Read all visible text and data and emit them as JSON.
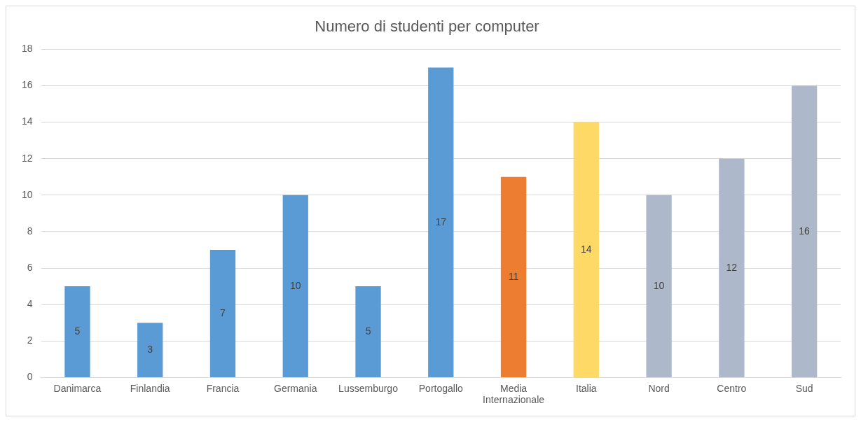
{
  "chart_data": {
    "type": "bar",
    "title": "Numero di studenti per computer",
    "categories": [
      "Danimarca",
      "Finlandia",
      "Francia",
      "Germania",
      "Lussemburgo",
      "Portogallo",
      "Media Internazionale",
      "Italia",
      "Nord",
      "Centro",
      "Sud"
    ],
    "values": [
      5,
      3,
      7,
      10,
      5,
      17,
      11,
      14,
      10,
      12,
      16
    ],
    "colors": [
      "#5b9bd5",
      "#5b9bd5",
      "#5b9bd5",
      "#5b9bd5",
      "#5b9bd5",
      "#5b9bd5",
      "#ed7d31",
      "#ffd966",
      "#adb9ca",
      "#adb9ca",
      "#adb9ca"
    ],
    "ylim": [
      0,
      18
    ],
    "yticks": [
      0,
      2,
      4,
      6,
      8,
      10,
      12,
      14,
      16,
      18
    ],
    "grid": "y",
    "legend": false,
    "data_labels": true
  }
}
